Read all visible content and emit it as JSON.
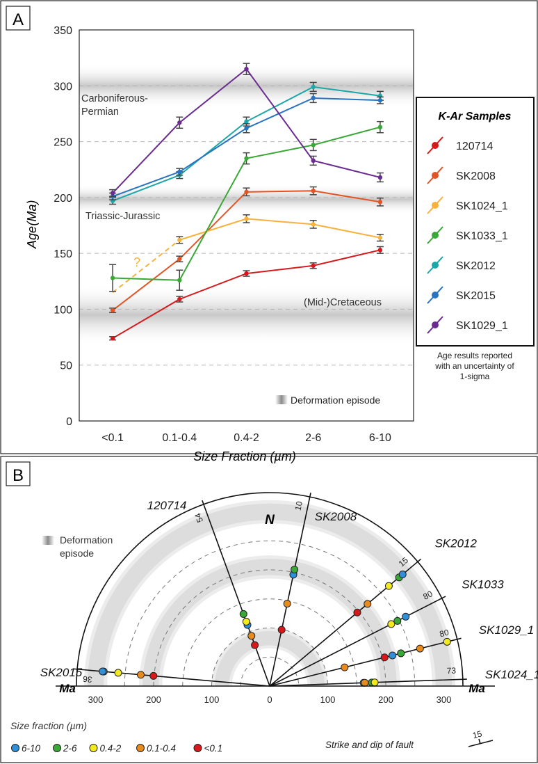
{
  "panel_a": {
    "label": "A",
    "background_band_label": "Deformation episode",
    "region_labels": [
      "Carboniferous-",
      "Permian",
      "Triassic-Jurassic",
      "(Mid-)Cretaceous"
    ],
    "question_mark": "?",
    "legend": {
      "title": "K-Ar Samples",
      "note": [
        "Age results reported",
        "with an uncertainty of",
        "1-sigma"
      ]
    }
  },
  "chart_data": [
    {
      "type": "line",
      "xlabel": "Size Fraction (µm)",
      "ylabel_main": "Age",
      "ylabel_unit": "(Ma)",
      "categories": [
        "<0.1",
        "0.1-0.4",
        "0.4-2",
        "2-6",
        "6-10"
      ],
      "ylim": [
        0,
        350
      ],
      "yticks": [
        0,
        50,
        100,
        150,
        200,
        250,
        300,
        350
      ],
      "grid": "dashed horizontal",
      "deformation_bands": [
        [
          68,
          122
        ],
        [
          185,
          212
        ],
        [
          280,
          320
        ]
      ],
      "series": [
        {
          "name": "120714",
          "color": "#d7191c",
          "values": [
            74,
            109,
            132,
            139,
            153
          ],
          "err": [
            1.5,
            2.5,
            2.5,
            2.5,
            3
          ]
        },
        {
          "name": "SK2008",
          "color": "#e35424",
          "values": [
            99,
            145,
            null,
            null,
            null
          ],
          "err": [
            2,
            2.5,
            3.5,
            3.5,
            3.5
          ],
          "extra": [
            [
              2,
              205
            ],
            [
              3,
              206
            ],
            [
              4,
              196
            ]
          ]
        },
        {
          "name": "SK1024_1",
          "color": "#f6b23a",
          "values": [
            null,
            162,
            181,
            176,
            164
          ],
          "err": [
            0,
            3,
            3.5,
            3.5,
            3
          ],
          "dashed_from": [
            0,
            115
          ]
        },
        {
          "name": "SK1033_1",
          "color": "#3aa836",
          "values": [
            128,
            126,
            235,
            247,
            263
          ],
          "err": [
            12,
            9,
            5,
            5,
            5
          ]
        },
        {
          "name": "SK2012",
          "color": "#1ba7a7",
          "values": [
            197,
            220,
            268,
            299,
            291
          ],
          "err": [
            3,
            3,
            4,
            4,
            4
          ]
        },
        {
          "name": "SK2015",
          "color": "#2874c2",
          "values": [
            201,
            223,
            262,
            289,
            287
          ],
          "err": [
            3,
            3,
            4,
            4,
            3
          ]
        },
        {
          "name": "SK1029_1",
          "color": "#6a2c8f",
          "values": [
            204,
            267,
            315,
            233,
            218
          ],
          "err": [
            3,
            5,
            5,
            4,
            4
          ]
        }
      ]
    },
    {
      "type": "polar",
      "radial_unit": "Ma",
      "north_label": "N",
      "radial_ticks_left": [
        300,
        200,
        100,
        0
      ],
      "radial_ticks_right": [
        0,
        100,
        200,
        300
      ],
      "bands": [
        [
          65,
          100
        ],
        [
          185,
          225
        ],
        [
          280,
          320
        ]
      ],
      "lines": [
        {
          "name": "120714",
          "strike_dip": "54",
          "bearing": 340,
          "points": [
            {
              "age": 75,
              "fraction": "<0.1"
            },
            {
              "age": 92,
              "fraction": "0.1-0.4"
            },
            {
              "age": 112,
              "fraction": "6-10"
            },
            {
              "age": 118,
              "fraction": "0.4-2"
            },
            {
              "age": 132,
              "fraction": "2-6"
            }
          ]
        },
        {
          "name": "SK2008",
          "strike_dip": "10",
          "bearing": 12,
          "points": [
            {
              "age": 99,
              "fraction": "<0.1"
            },
            {
              "age": 145,
              "fraction": "0.1-0.4"
            },
            {
              "age": 196,
              "fraction": "6-10"
            },
            {
              "age": 205,
              "fraction": "2-6"
            }
          ]
        },
        {
          "name": "SK2012",
          "strike_dip": "15",
          "bearing": 50,
          "points": [
            {
              "age": 197,
              "fraction": "<0.1"
            },
            {
              "age": 220,
              "fraction": "0.1-0.4"
            },
            {
              "age": 268,
              "fraction": "0.4-2"
            },
            {
              "age": 291,
              "fraction": "2-6"
            },
            {
              "age": 299,
              "fraction": "6-10"
            }
          ]
        },
        {
          "name": "SK1033",
          "strike_dip": "80",
          "bearing": 63,
          "points": [
            {
              "age": 235,
              "fraction": "0.4-2"
            },
            {
              "age": 247,
              "fraction": "2-6"
            },
            {
              "age": 263,
              "fraction": "6-10"
            }
          ]
        },
        {
          "name": "SK1029_1",
          "strike_dip": "80",
          "bearing": 76,
          "points": [
            {
              "age": 133,
              "fraction": "0.1-0.4"
            },
            {
              "age": 204,
              "fraction": "<0.1"
            },
            {
              "age": 218,
              "fraction": "6-10"
            },
            {
              "age": 233,
              "fraction": "2-6"
            },
            {
              "age": 267,
              "fraction": "0.1-0.4"
            },
            {
              "age": 315,
              "fraction": "0.4-2"
            }
          ]
        },
        {
          "name": "SK1024_1",
          "strike_dip": "73",
          "bearing": 88,
          "points": [
            {
              "age": 162,
              "fraction": "6-10"
            },
            {
              "age": 164,
              "fraction": "0.1-0.4"
            },
            {
              "age": 176,
              "fraction": "2-6"
            },
            {
              "age": 181,
              "fraction": "0.4-2"
            }
          ]
        },
        {
          "name": "SK2015",
          "strike_dip": "36",
          "bearing": 275,
          "points": [
            {
              "age": 201,
              "fraction": "<0.1"
            },
            {
              "age": 223,
              "fraction": "0.1-0.4"
            },
            {
              "age": 262,
              "fraction": "0.4-2"
            },
            {
              "age": 287,
              "fraction": "6-10"
            },
            {
              "age": 289,
              "fraction": "6-10"
            }
          ]
        }
      ],
      "fraction_legend_title": "Size fraction (µm)",
      "fraction_legend": [
        {
          "label": "6-10",
          "color": "#2f8fd8"
        },
        {
          "label": "2-6",
          "color": "#3aa836"
        },
        {
          "label": "0.4-2",
          "color": "#f3ea1c"
        },
        {
          "label": "0.1-0.4",
          "color": "#e88a1c"
        },
        {
          "label": "<0.1",
          "color": "#d7191c"
        }
      ]
    }
  ],
  "panel_b": {
    "label": "B",
    "band_label": [
      "Deformation",
      "episode"
    ],
    "strike_dip_label": "Strike and dip of fault",
    "strike_dip_value": "15"
  }
}
